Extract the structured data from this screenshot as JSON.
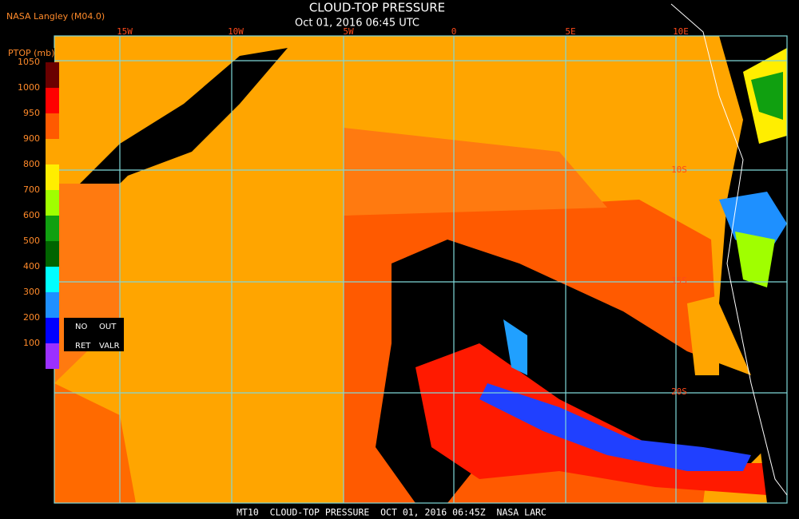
{
  "header": {
    "source": "NASA Langley (M04.0)",
    "title": "CLOUD-TOP PRESSURE",
    "time": "Oct 01, 2016 06:45 UTC"
  },
  "longitude_labels": [
    "15W",
    "10W",
    "5W",
    "0",
    "5E",
    "10E"
  ],
  "latitude_labels": [
    "10S",
    "15S",
    "20S"
  ],
  "colorbar": {
    "title": "PTOP (mb)",
    "ticks": [
      1050,
      1000,
      950,
      900,
      800,
      700,
      600,
      500,
      400,
      300,
      200,
      100
    ],
    "colors": [
      "#6a0000",
      "#ff0000",
      "#ff5a00",
      "#ffa500",
      "#ffee00",
      "#a0ff00",
      "#10a010",
      "#006400",
      "#00ffff",
      "#1e90ff",
      "#0000ff",
      "#9b30ff"
    ],
    "no_data": [
      "NO",
      "OUT"
    ],
    "no_data_2": [
      "RET",
      "VALR"
    ]
  },
  "footer": "MT10  CLOUD-TOP PRESSURE  OCT 01, 2016 06:45Z  NASA LARC"
}
